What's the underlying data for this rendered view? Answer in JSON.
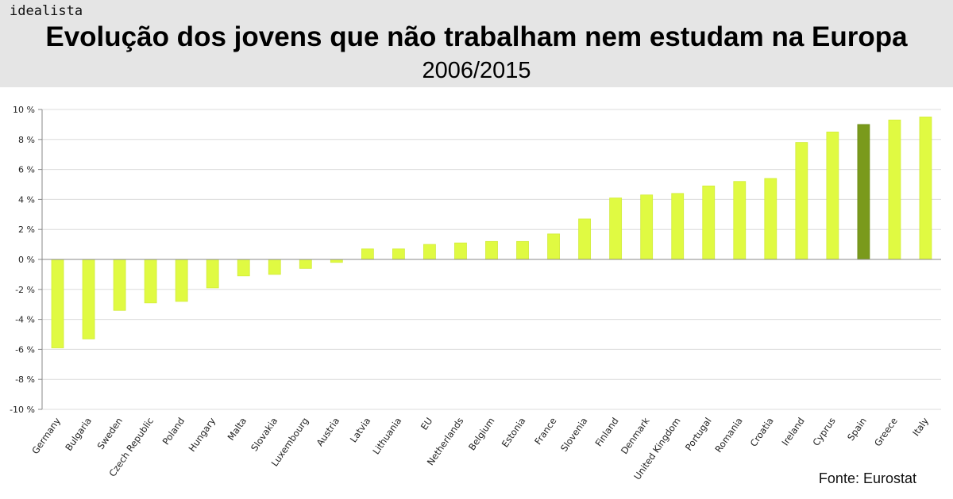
{
  "brand": "idealista",
  "header": {
    "title": "Evolução dos jovens que não trabalham nem estudam na Europa",
    "subtitle": "2006/2015"
  },
  "source": "Fonte: Eurostat",
  "chart_data": {
    "type": "bar",
    "title": "Evolução dos jovens que não trabalham nem estudam na Europa",
    "subtitle": "2006/2015",
    "categories": [
      "Germany",
      "Bulgaria",
      "Sweden",
      "Czech Republic",
      "Poland",
      "Hungary",
      "Malta",
      "Slovakia",
      "Luxembourg",
      "Austria",
      "Latvia",
      "Lithuania",
      "EU",
      "Netherlands",
      "Belgium",
      "Estonia",
      "France",
      "Slovenia",
      "Finland",
      "Denmark",
      "United Kingdom",
      "Portugal",
      "Romania",
      "Croatia",
      "Ireland",
      "Cyprus",
      "Spain",
      "Greece",
      "Italy"
    ],
    "values": [
      -5.9,
      -5.3,
      -3.4,
      -2.9,
      -2.8,
      -1.9,
      -1.1,
      -1.0,
      -0.6,
      -0.2,
      0.7,
      0.7,
      1.0,
      1.1,
      1.2,
      1.2,
      1.7,
      2.7,
      4.1,
      4.3,
      4.4,
      4.9,
      5.2,
      5.4,
      7.8,
      8.5,
      9.0,
      9.3,
      9.5
    ],
    "unit": "%",
    "ylim": [
      -10,
      10
    ],
    "yticks": [
      10,
      8,
      6,
      4,
      2,
      0,
      -2,
      -4,
      -6,
      -8,
      -10
    ],
    "ytick_labels": [
      "10 %",
      "8 %",
      "6 %",
      "4 %",
      "2 %",
      "0 %",
      "-2 %",
      "-4 %",
      "-6 %",
      "-8 %",
      "-10 %"
    ],
    "grid": true,
    "colors": {
      "bar": "#e0fa42",
      "highlight": "#7a9a1c",
      "highlight_category": "Spain",
      "grid": "#dcdcdc"
    }
  }
}
